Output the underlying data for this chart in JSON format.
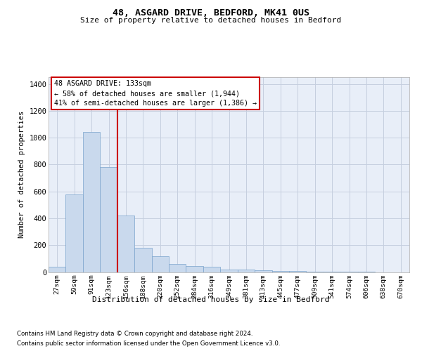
{
  "title1": "48, ASGARD DRIVE, BEDFORD, MK41 0US",
  "title2": "Size of property relative to detached houses in Bedford",
  "xlabel": "Distribution of detached houses by size in Bedford",
  "ylabel": "Number of detached properties",
  "footer1": "Contains HM Land Registry data © Crown copyright and database right 2024.",
  "footer2": "Contains public sector information licensed under the Open Government Licence v3.0.",
  "annotation_line1": "48 ASGARD DRIVE: 133sqm",
  "annotation_line2": "← 58% of detached houses are smaller (1,944)",
  "annotation_line3": "41% of semi-detached houses are larger (1,386) →",
  "bar_color": "#c9d9ed",
  "bar_edge_color": "#7aa3cc",
  "vline_color": "#cc0000",
  "ann_box_edge": "#cc0000",
  "bg_axes": "#e8eef8",
  "bg_fig": "#ffffff",
  "grid_color": "#c5cfdf",
  "categories": [
    "27sqm",
    "59sqm",
    "91sqm",
    "123sqm",
    "156sqm",
    "188sqm",
    "220sqm",
    "252sqm",
    "284sqm",
    "316sqm",
    "349sqm",
    "381sqm",
    "413sqm",
    "445sqm",
    "477sqm",
    "509sqm",
    "541sqm",
    "574sqm",
    "606sqm",
    "638sqm",
    "670sqm"
  ],
  "values": [
    40,
    575,
    1040,
    780,
    420,
    180,
    120,
    60,
    45,
    40,
    20,
    20,
    15,
    10,
    8,
    5,
    3,
    2,
    1,
    0,
    0
  ],
  "vline_x": 3.5,
  "ylim": [
    0,
    1450
  ],
  "yticks": [
    0,
    200,
    400,
    600,
    800,
    1000,
    1200,
    1400
  ]
}
